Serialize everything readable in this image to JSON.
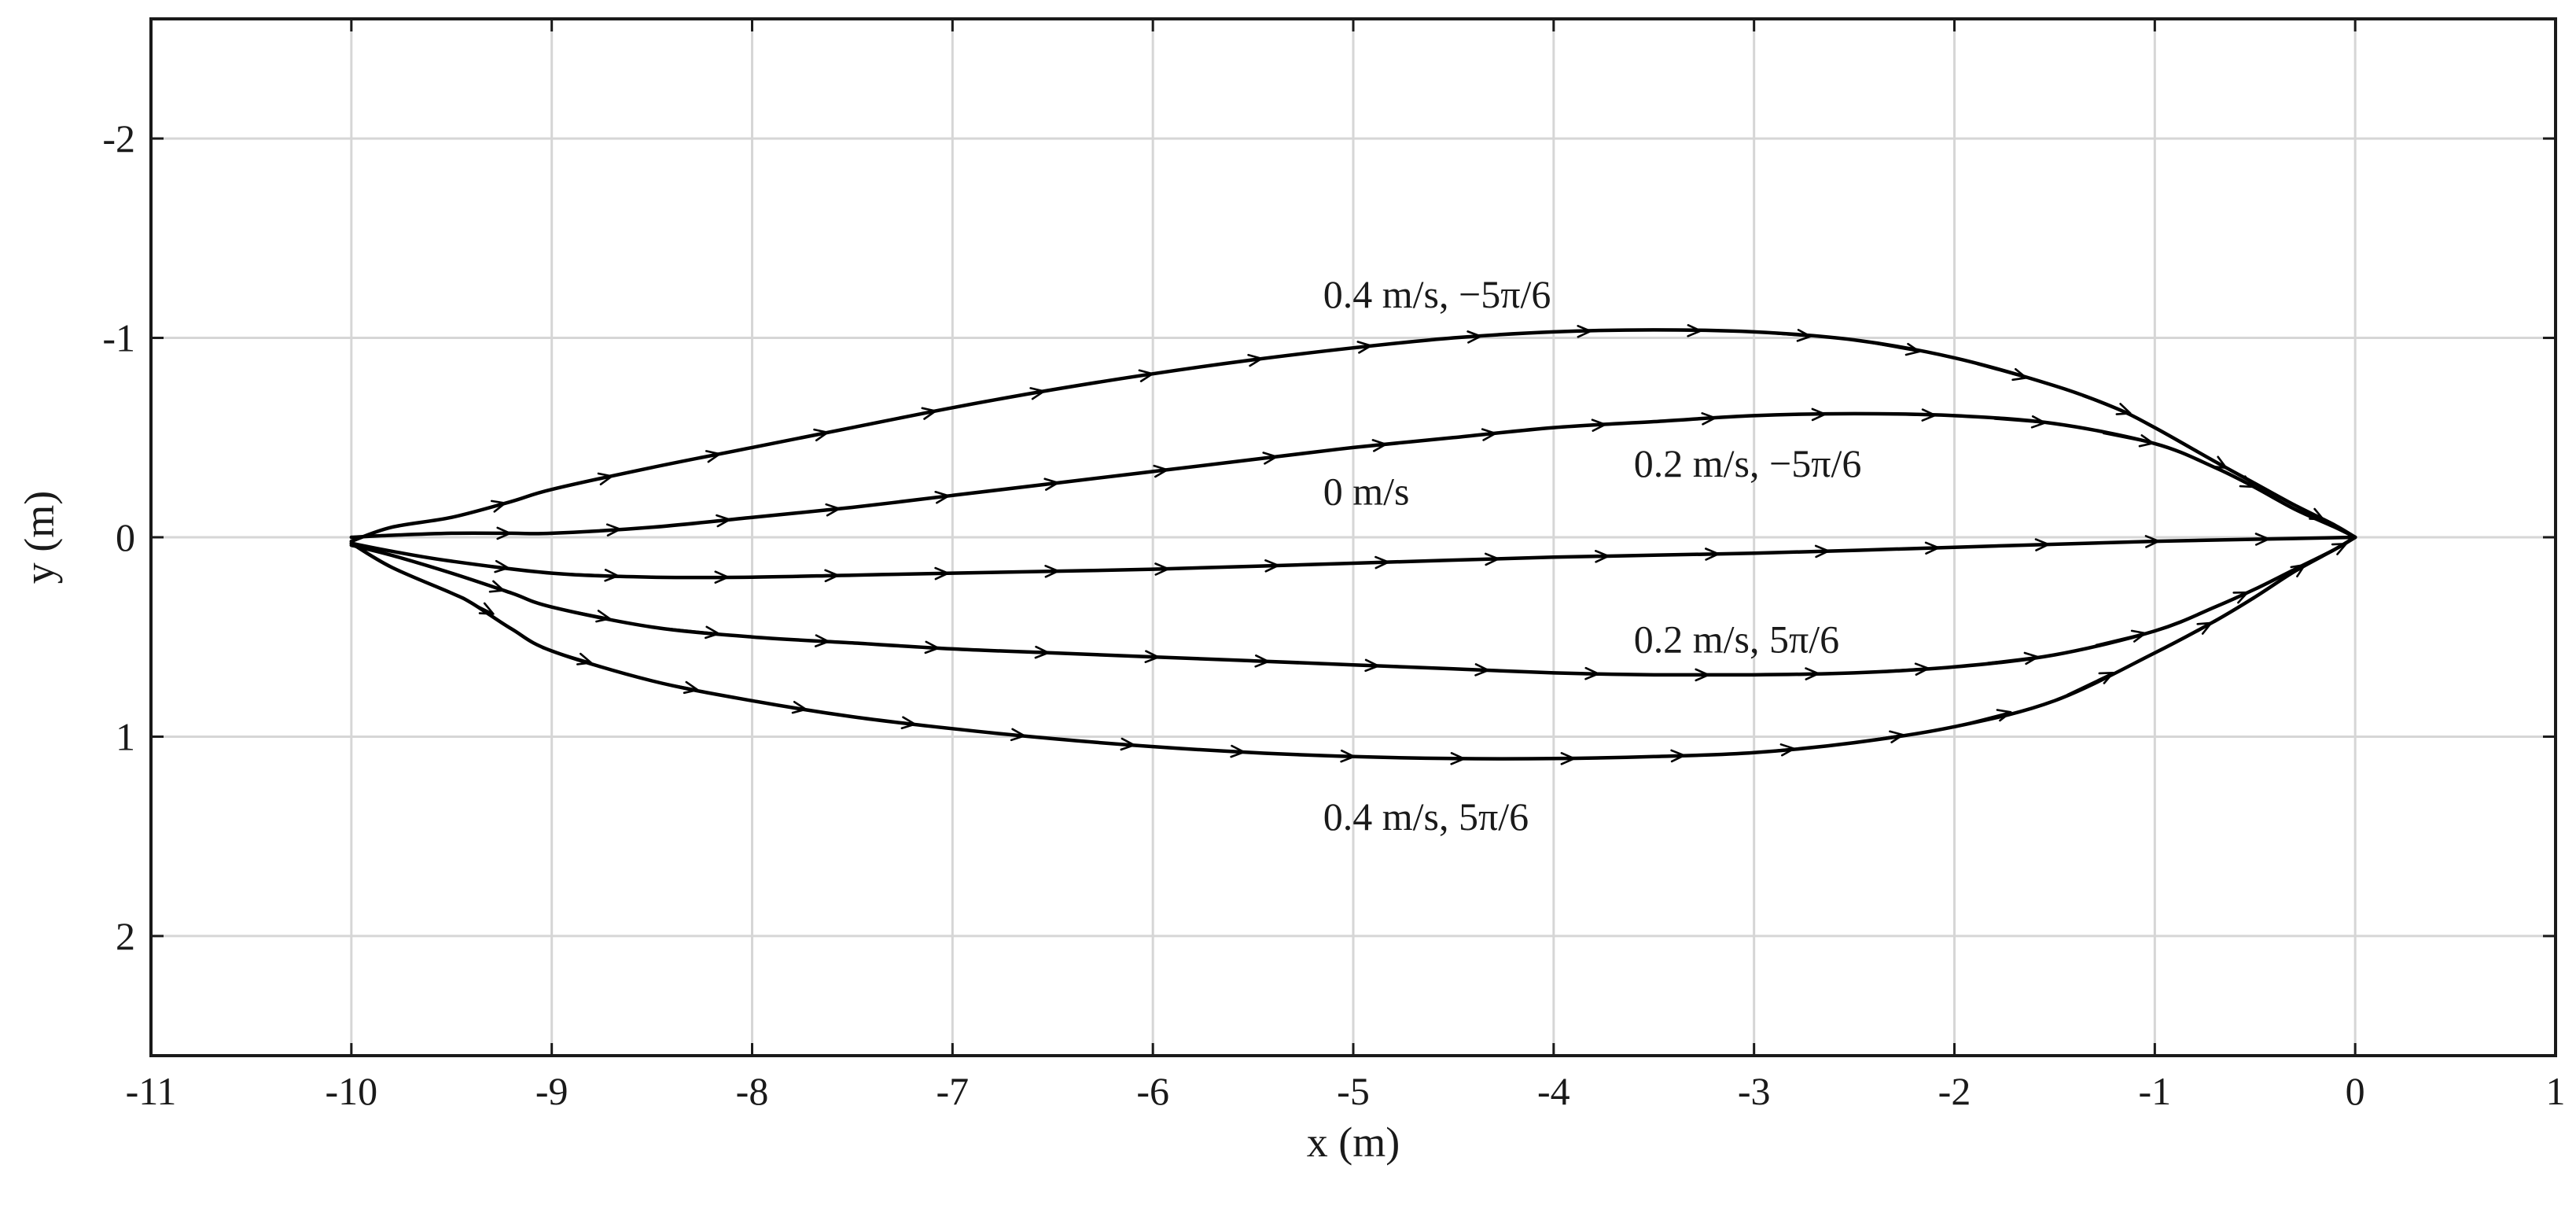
{
  "chart_data": {
    "type": "line",
    "title": "",
    "xlabel": "x (m)",
    "ylabel": "y (m)",
    "xlim": [
      -11,
      1
    ],
    "ylim": [
      -2.6,
      2.6
    ],
    "y_axis_reversed": true,
    "grid": true,
    "legend": "none (series labelled inline)",
    "xticks": [
      "-11",
      "-10",
      "-9",
      "-8",
      "-7",
      "-6",
      "-5",
      "-4",
      "-3",
      "-2",
      "-1",
      "0",
      "1"
    ],
    "yticks": [
      "-2",
      "-1",
      "0",
      "1",
      "2"
    ],
    "line_color": "#000000",
    "series": [
      {
        "label": "0.4 m/s, −5π/6",
        "x": [
          -10,
          -9.8,
          -9.5,
          -9.2,
          -9,
          -8.5,
          -8,
          -7.5,
          -7,
          -6.5,
          -6,
          -5.5,
          -5,
          -4.5,
          -4,
          -3.5,
          -3,
          -2.5,
          -2,
          -1.5,
          -1.2,
          -1,
          -0.7,
          -0.5,
          -0.3,
          -0.1,
          0
        ],
        "y": [
          0.02,
          -0.05,
          -0.1,
          -0.18,
          -0.24,
          -0.35,
          -0.45,
          -0.55,
          -0.65,
          -0.74,
          -0.82,
          -0.89,
          -0.95,
          -1.0,
          -1.03,
          -1.04,
          -1.03,
          -0.99,
          -0.9,
          -0.76,
          -0.65,
          -0.55,
          -0.38,
          -0.27,
          -0.16,
          -0.06,
          0
        ]
      },
      {
        "label": "0.2 m/s, −5π/6",
        "x": [
          -10,
          -9.8,
          -9.5,
          -9.2,
          -9,
          -8.5,
          -8,
          -7.5,
          -7,
          -6.5,
          -6,
          -5.5,
          -5,
          -4.5,
          -4,
          -3.5,
          -3,
          -2.5,
          -2,
          -1.5,
          -1,
          -0.7,
          -0.5,
          -0.3,
          -0.1,
          0
        ],
        "y": [
          0.0,
          -0.01,
          -0.02,
          -0.02,
          -0.02,
          -0.05,
          -0.1,
          -0.15,
          -0.21,
          -0.27,
          -0.33,
          -0.39,
          -0.45,
          -0.5,
          -0.55,
          -0.58,
          -0.61,
          -0.62,
          -0.61,
          -0.57,
          -0.47,
          -0.35,
          -0.25,
          -0.14,
          -0.05,
          0
        ]
      },
      {
        "label": "0 m/s",
        "x": [
          -10,
          -9.8,
          -9.5,
          -9,
          -8.5,
          -8,
          -7.5,
          -7,
          -6,
          -5,
          -4,
          -3,
          -2,
          -1,
          -0.5,
          0
        ],
        "y": [
          0.03,
          0.07,
          0.12,
          0.18,
          0.2,
          0.2,
          0.19,
          0.18,
          0.16,
          0.13,
          0.1,
          0.08,
          0.05,
          0.02,
          0.01,
          0
        ]
      },
      {
        "label": "0.2 m/s, 5π/6",
        "x": [
          -10,
          -9.8,
          -9.5,
          -9.2,
          -9,
          -8.5,
          -8,
          -7.5,
          -7,
          -6.5,
          -6,
          -5.5,
          -5,
          -4.5,
          -4,
          -3.5,
          -3,
          -2.5,
          -2,
          -1.5,
          -1,
          -0.7,
          -0.5,
          -0.3,
          -0.1,
          0
        ],
        "y": [
          0.04,
          0.09,
          0.18,
          0.28,
          0.35,
          0.45,
          0.5,
          0.53,
          0.56,
          0.58,
          0.6,
          0.62,
          0.64,
          0.66,
          0.68,
          0.69,
          0.69,
          0.68,
          0.65,
          0.59,
          0.47,
          0.35,
          0.26,
          0.16,
          0.06,
          0
        ]
      },
      {
        "label": "0.4 m/s, 5π/6",
        "x": [
          -10,
          -9.8,
          -9.5,
          -9.4,
          -9.2,
          -9,
          -8.5,
          -8,
          -7.5,
          -7,
          -6.5,
          -6,
          -5.5,
          -5,
          -4.5,
          -4,
          -3.5,
          -3,
          -2.5,
          -2,
          -1.5,
          -1,
          -0.7,
          -0.5,
          -0.3,
          -0.1,
          0
        ],
        "y": [
          0.03,
          0.15,
          0.28,
          0.33,
          0.46,
          0.57,
          0.72,
          0.82,
          0.9,
          0.96,
          1.01,
          1.05,
          1.08,
          1.1,
          1.11,
          1.11,
          1.1,
          1.08,
          1.03,
          0.95,
          0.82,
          0.58,
          0.42,
          0.3,
          0.17,
          0.06,
          0
        ]
      }
    ],
    "annotations": [
      {
        "text": "0.4 m/s, −5π/6",
        "x": -5.15,
        "y": -1.22
      },
      {
        "text": "0.2 m/s, −5π/6",
        "x": -3.6,
        "y": -0.37
      },
      {
        "text": "0 m/s",
        "x": -5.15,
        "y": -0.23
      },
      {
        "text": "0.2 m/s, 5π/6",
        "x": -3.6,
        "y": 0.51
      },
      {
        "text": "0.4 m/s, 5π/6",
        "x": -5.15,
        "y": 1.4
      }
    ]
  }
}
